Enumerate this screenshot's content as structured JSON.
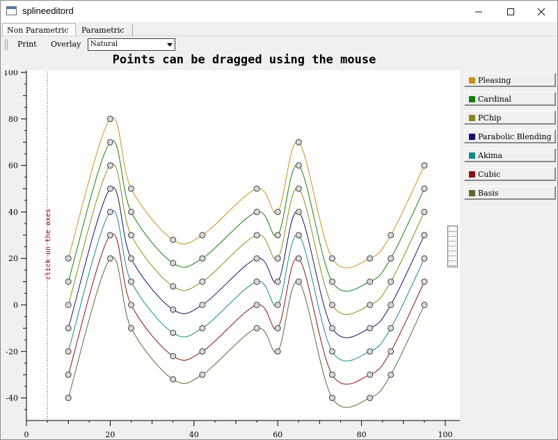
{
  "window": {
    "title": "splineeditord"
  },
  "tabs": [
    {
      "label": "Non Parametric",
      "active": true
    },
    {
      "label": "Parametric",
      "active": false
    }
  ],
  "toolbar": {
    "print_label": "Print",
    "overlay_label": "Overlay",
    "combo_value": "Natural"
  },
  "legend": [
    {
      "label": "Pleasing",
      "color": "#c8901a"
    },
    {
      "label": "Cardinal",
      "color": "#108010"
    },
    {
      "label": "PChip",
      "color": "#888818"
    },
    {
      "label": "Parabolic Blending",
      "color": "#10106e"
    },
    {
      "label": "Akima",
      "color": "#108c88"
    },
    {
      "label": "Cubic",
      "color": "#8c1010"
    },
    {
      "label": "Basis",
      "color": "#5a6a30"
    }
  ],
  "chart_data": {
    "type": "line",
    "title": "Points can be dragged using the mouse",
    "marker_label": "click on the axes",
    "marker_x": 5,
    "xlim": [
      0,
      100
    ],
    "ylim": [
      -45,
      100
    ],
    "x_ticks": [
      0,
      20,
      40,
      60,
      80,
      100
    ],
    "y_ticks": [
      -40,
      -20,
      0,
      20,
      40,
      60,
      80,
      100
    ],
    "x": [
      10,
      20,
      25,
      35,
      42,
      55,
      60,
      65,
      73,
      82,
      87,
      95
    ],
    "series": [
      {
        "name": "Pleasing",
        "color": "#c8901a",
        "values": [
          20,
          80,
          50,
          28,
          30,
          50,
          40,
          70,
          20,
          20,
          30,
          60
        ]
      },
      {
        "name": "Cardinal",
        "color": "#108010",
        "values": [
          10,
          70,
          40,
          18,
          20,
          40,
          30,
          60,
          10,
          10,
          20,
          50
        ]
      },
      {
        "name": "PChip",
        "color": "#888818",
        "values": [
          0,
          60,
          30,
          8,
          10,
          30,
          20,
          50,
          0,
          0,
          10,
          40
        ]
      },
      {
        "name": "Parabolic Blending",
        "color": "#10106e",
        "values": [
          -10,
          50,
          20,
          -2,
          0,
          20,
          10,
          40,
          -10,
          -10,
          0,
          30
        ]
      },
      {
        "name": "Akima",
        "color": "#108c88",
        "values": [
          -20,
          40,
          10,
          -12,
          -10,
          10,
          0,
          30,
          -20,
          -20,
          -10,
          20
        ]
      },
      {
        "name": "Cubic",
        "color": "#8c1010",
        "values": [
          -30,
          30,
          0,
          -22,
          -20,
          0,
          -10,
          20,
          -30,
          -30,
          -20,
          10
        ]
      },
      {
        "name": "Basis",
        "color": "#5a6a30",
        "values": [
          -40,
          20,
          -10,
          -32,
          -30,
          -10,
          -20,
          10,
          -40,
          -40,
          -30,
          0
        ]
      }
    ]
  }
}
